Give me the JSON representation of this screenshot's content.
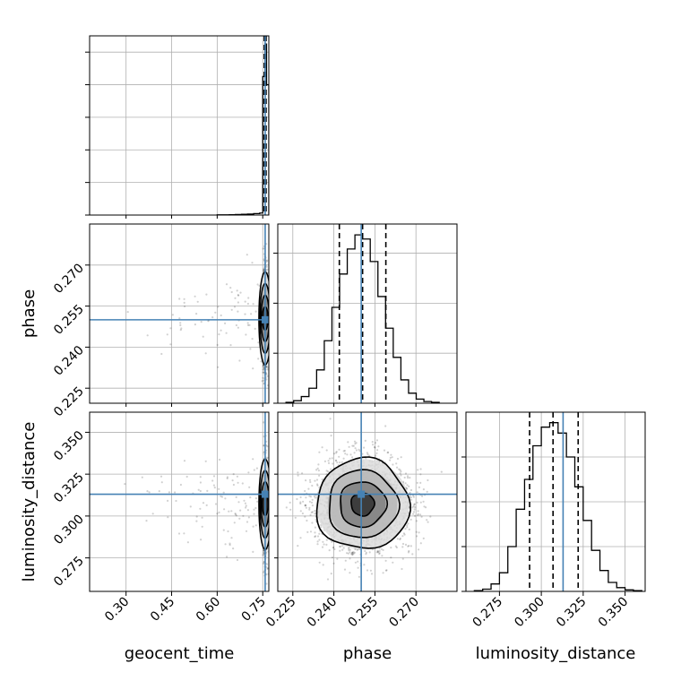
{
  "chart_data": {
    "type": "corner",
    "parameters": [
      "geocent_time",
      "phase",
      "luminosity_distance"
    ],
    "axis_labels": {
      "x": [
        "geocent_time",
        "phase",
        "luminosity_distance"
      ],
      "y": [
        "phase",
        "luminosity_distance"
      ]
    },
    "truth_color": "#4682b4",
    "truths": {
      "geocent_time": 0.758,
      "phase": 0.25,
      "luminosity_distance": 0.313
    },
    "quantiles_dashed": {
      "geocent_time": [
        0.755,
        0.758,
        0.761
      ],
      "phase": [
        0.242,
        0.2505,
        0.259
      ],
      "luminosity_distance": [
        0.293,
        0.307,
        0.322
      ]
    },
    "ranges": {
      "geocent_time": [
        0.18,
        0.77
      ],
      "phase": [
        0.2195,
        0.285
      ],
      "luminosity_distance": [
        0.255,
        0.362
      ]
    },
    "ticks": {
      "geocent_time": [
        {
          "v": 0.3,
          "label": "0.30"
        },
        {
          "v": 0.45,
          "label": "0.45"
        },
        {
          "v": 0.6,
          "label": "0.60"
        },
        {
          "v": 0.75,
          "label": "0.75"
        }
      ],
      "phase": [
        {
          "v": 0.225,
          "label": "0.225"
        },
        {
          "v": 0.24,
          "label": "0.240"
        },
        {
          "v": 0.255,
          "label": "0.255"
        },
        {
          "v": 0.27,
          "label": "0.270"
        }
      ],
      "luminosity_distance": [
        {
          "v": 0.275,
          "label": "0.275"
        },
        {
          "v": 0.3,
          "label": "0.300"
        },
        {
          "v": 0.325,
          "label": "0.325"
        },
        {
          "v": 0.35,
          "label": "0.350"
        }
      ]
    },
    "histograms": {
      "geocent_time": {
        "bins": [
          0.6,
          0.62,
          0.64,
          0.66,
          0.68,
          0.7,
          0.72,
          0.74,
          0.75,
          0.7575,
          0.7625,
          0.77
        ],
        "counts": [
          0.2,
          0.3,
          0.4,
          0.6,
          0.9,
          1.2,
          1.8,
          2.5,
          170,
          210,
          160
        ]
      },
      "phase": {
        "bins": [
          0.2225,
          0.2253,
          0.2281,
          0.2309,
          0.2337,
          0.2365,
          0.2393,
          0.2421,
          0.2449,
          0.2477,
          0.2505,
          0.2533,
          0.2561,
          0.2589,
          0.2617,
          0.2645,
          0.2673,
          0.2701,
          0.2729,
          0.2757,
          0.2785
        ],
        "counts": [
          1,
          3,
          8,
          18,
          40,
          75,
          115,
          155,
          185,
          202,
          197,
          170,
          128,
          90,
          55,
          28,
          12,
          5,
          2,
          1
        ]
      },
      "luminosity_distance": {
        "bins": [
          0.26,
          0.265,
          0.27,
          0.275,
          0.28,
          0.285,
          0.29,
          0.295,
          0.3,
          0.305,
          0.31,
          0.315,
          0.32,
          0.325,
          0.33,
          0.335,
          0.34,
          0.345,
          0.35,
          0.355,
          0.36
        ],
        "counts": [
          1,
          3,
          10,
          25,
          60,
          110,
          150,
          195,
          220,
          226,
          212,
          180,
          140,
          95,
          55,
          28,
          12,
          5,
          2,
          1
        ]
      }
    },
    "density_ylim": {
      "geocent_time": [
        0,
        220
      ],
      "phase": [
        0,
        215
      ],
      "luminosity_distance": [
        0,
        240
      ]
    },
    "yticks_hist": {
      "geocent_time": [
        0,
        40,
        80,
        120,
        160,
        200
      ],
      "phase": [
        0,
        60,
        120,
        180
      ],
      "luminosity_distance": [
        0,
        60,
        120,
        180
      ]
    },
    "samples": {
      "geocent_time": {
        "core_mean": 0.758,
        "core_sd": 0.0015,
        "tail_from": 0.25
      },
      "phase": {
        "mean": 0.2505,
        "sd": 0.0085
      },
      "luminosity_distance": {
        "mean": 0.307,
        "sd": 0.0135
      }
    },
    "grid": true
  }
}
